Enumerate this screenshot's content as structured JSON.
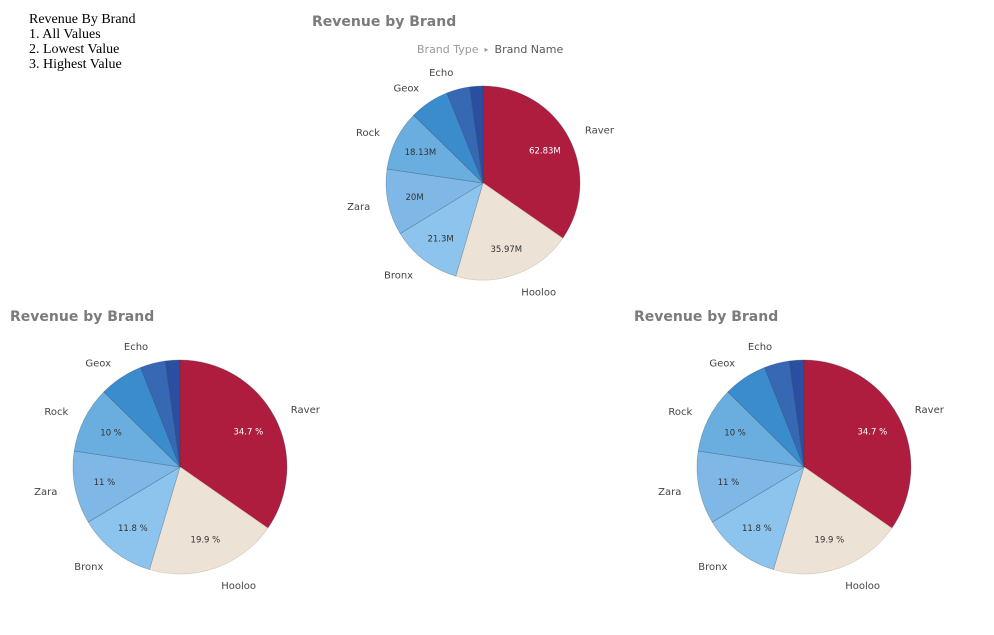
{
  "note": {
    "title": "Revenue By Brand",
    "items": [
      "1. All Values",
      "2. Lowest Value",
      "3. Highest Value"
    ]
  },
  "drill": {
    "level1": "Brand Type",
    "separator": "▸",
    "level2": "Brand Name"
  },
  "colors": {
    "Raver": "#ae1c3e",
    "Hooloo": "#ede2d6",
    "Bronx": "#8dc4ed",
    "Zara": "#7fb8e6",
    "Rock": "#6aaee0",
    "Geox": "#3a8ccc",
    "Echo": "#3768b4",
    "Other": "#2b4fa0"
  },
  "chart_data": [
    {
      "type": "pie",
      "title": "Revenue by Brand",
      "labels": [
        "Raver",
        "Hooloo",
        "Bronx",
        "Zara",
        "Rock",
        "Geox",
        "Echo",
        ""
      ],
      "values": [
        62.83,
        35.97,
        21.3,
        20,
        18.13,
        12,
        7,
        4
      ],
      "unit": "M",
      "data_labels": [
        "62.83M",
        "35.97M",
        "21.3M",
        "20M",
        "18.13M",
        "",
        "",
        ""
      ]
    },
    {
      "type": "pie",
      "title": "Revenue by Brand",
      "labels": [
        "Raver",
        "Hooloo",
        "Bronx",
        "Zara",
        "Rock",
        "Geox",
        "Echo",
        ""
      ],
      "values": [
        34.7,
        19.9,
        11.8,
        11,
        10,
        6.6,
        3.8,
        2.2
      ],
      "unit": "%",
      "data_labels": [
        "34.7 %",
        "19.9 %",
        "11.8 %",
        "11 %",
        "10 %",
        "",
        "",
        ""
      ]
    },
    {
      "type": "pie",
      "title": "Revenue by Brand",
      "labels": [
        "Raver",
        "Hooloo",
        "Bronx",
        "Zara",
        "Rock",
        "Geox",
        "Echo",
        ""
      ],
      "values": [
        34.7,
        19.9,
        11.8,
        11,
        10,
        6.6,
        3.8,
        2.2
      ],
      "unit": "%",
      "data_labels": [
        "34.7 %",
        "19.9 %",
        "11.8 %",
        "11 %",
        "10 %",
        "",
        "",
        ""
      ]
    }
  ]
}
